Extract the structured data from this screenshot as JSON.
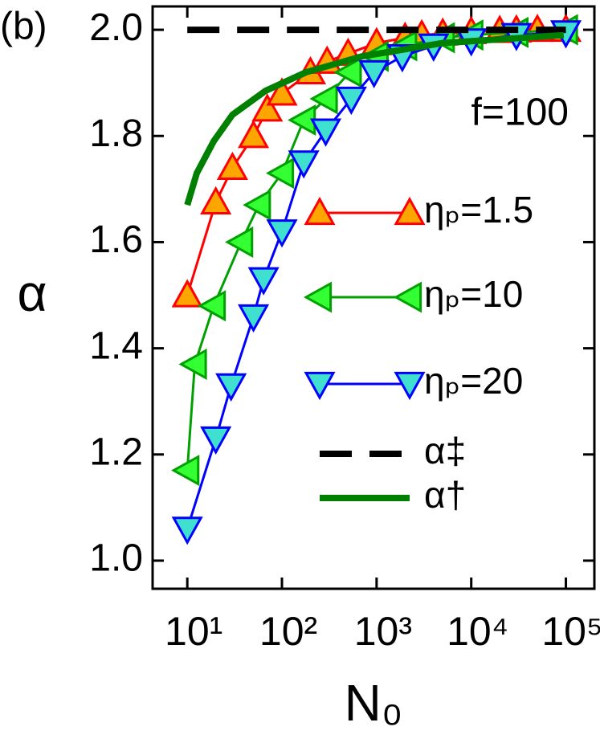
{
  "chart_data": {
    "type": "line",
    "panel_label": "(b)",
    "annotation": "f=100",
    "annotation_color": "#ff0000",
    "xlabel": "N₀",
    "ylabel": "α",
    "xscale": "log",
    "xlim": [
      4.3,
      200000
    ],
    "ylim": [
      0.947,
      2.044
    ],
    "xticks": [
      {
        "value": 10,
        "label": "10¹"
      },
      {
        "value": 100,
        "label": "10²"
      },
      {
        "value": 1000,
        "label": "10³"
      },
      {
        "value": 10000,
        "label": "10⁴"
      },
      {
        "value": 100000,
        "label": "10⁵"
      }
    ],
    "yticks": [
      {
        "value": 1.0,
        "label": "1.0"
      },
      1.2,
      1.4,
      1.6,
      1.8,
      {
        "value": 2.0,
        "label": "2.0"
      }
    ],
    "series": [
      {
        "name": "ηₚ=1.5",
        "color": "#ff0000",
        "marker_fill": "#ffa500",
        "marker": "up",
        "x": [
          10,
          20,
          30,
          50,
          70,
          100,
          200,
          300,
          500,
          1000,
          2000,
          3000,
          5000,
          10000,
          20000,
          30000,
          50000,
          100000
        ],
        "values": [
          1.5,
          1.675,
          1.74,
          1.8,
          1.85,
          1.88,
          1.92,
          1.94,
          1.955,
          1.975,
          1.985,
          1.99,
          1.993,
          1.996,
          1.998,
          1.999,
          2.0,
          2.0
        ]
      },
      {
        "name": "ηₚ=10",
        "color": "#00a000",
        "marker_fill": "#33ff33",
        "marker": "left",
        "x": [
          10,
          12,
          19,
          37,
          57,
          100,
          170,
          290,
          520,
          1000,
          2000,
          5000,
          10000,
          30000,
          100000
        ],
        "values": [
          1.17,
          1.37,
          1.48,
          1.6,
          1.67,
          1.73,
          1.83,
          1.87,
          1.92,
          1.95,
          1.97,
          1.985,
          1.99,
          1.995,
          2.0
        ]
      },
      {
        "name": "ηₚ=20",
        "color": "#0000ff",
        "marker_fill": "#40e0d0",
        "marker": "down",
        "x": [
          10,
          20,
          29,
          50,
          64,
          100,
          170,
          290,
          540,
          940,
          1870,
          4000,
          10000,
          30000,
          100000
        ],
        "values": [
          1.06,
          1.23,
          1.33,
          1.46,
          1.53,
          1.62,
          1.75,
          1.81,
          1.87,
          1.92,
          1.95,
          1.97,
          1.98,
          1.99,
          1.995
        ]
      },
      {
        "name": "α‡",
        "color": "#000000",
        "dash": true,
        "x": [
          10,
          100000
        ],
        "values": [
          2.0,
          2.0
        ]
      },
      {
        "name": "α†",
        "color": "#008000",
        "x": [
          10,
          12.6,
          19,
          30,
          67,
          180,
          700,
          5000,
          95000
        ],
        "values": [
          1.67,
          1.73,
          1.79,
          1.84,
          1.885,
          1.92,
          1.95,
          1.975,
          1.99
        ]
      }
    ]
  }
}
